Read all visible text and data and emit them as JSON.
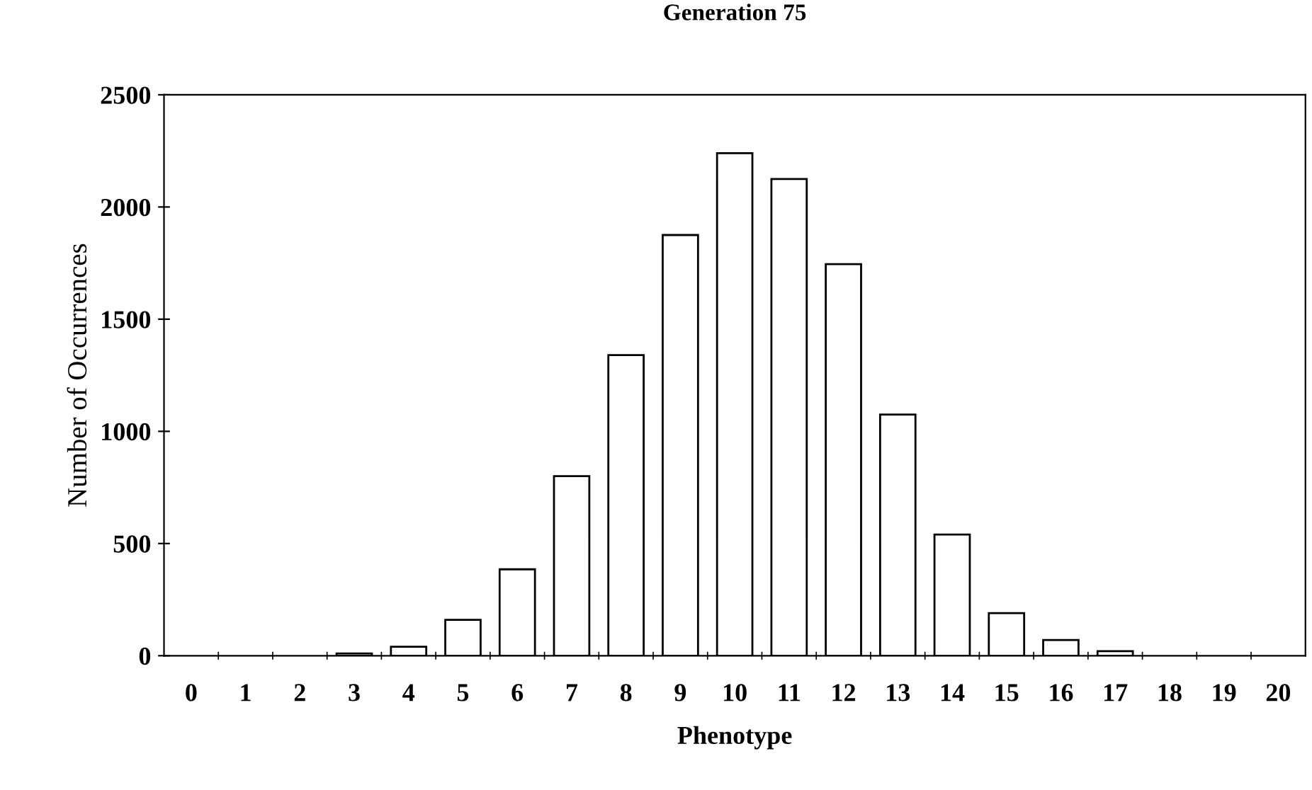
{
  "chart_data": {
    "type": "bar",
    "title": "Generation 75",
    "xlabel": "Phenotype",
    "ylabel": "Number of Occurrences",
    "categories": [
      "0",
      "1",
      "2",
      "3",
      "4",
      "5",
      "6",
      "7",
      "8",
      "9",
      "10",
      "11",
      "12",
      "13",
      "14",
      "15",
      "16",
      "17",
      "18",
      "19",
      "20"
    ],
    "values": [
      0,
      0,
      0,
      10,
      40,
      160,
      385,
      800,
      1340,
      1875,
      2240,
      2125,
      1745,
      1075,
      540,
      190,
      70,
      20,
      0,
      0,
      0
    ],
    "color": "#ffffff",
    "ylim": [
      0,
      2500
    ],
    "yticks": [
      0,
      500,
      1000,
      1500,
      2000,
      2500
    ],
    "grid": false
  }
}
